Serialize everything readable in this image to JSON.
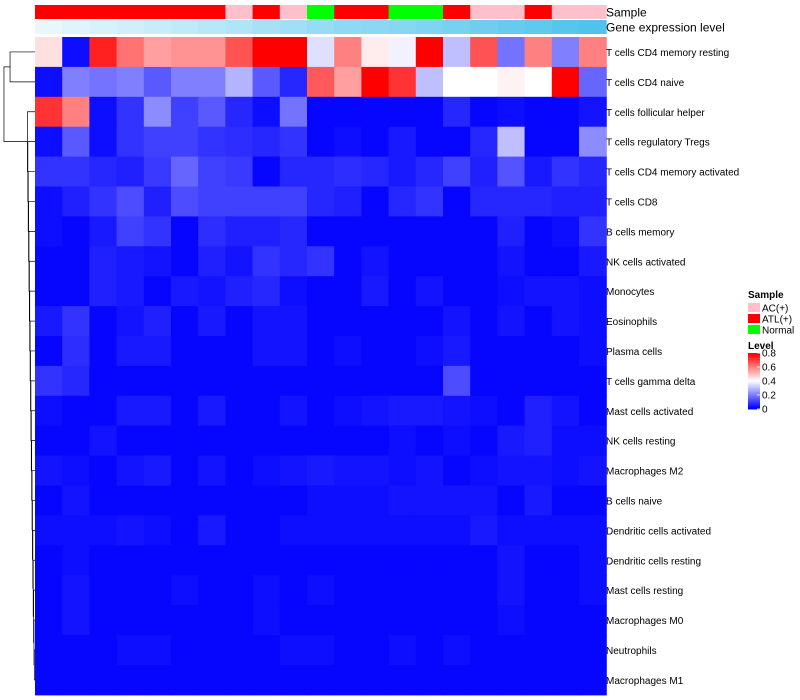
{
  "chart_data": {
    "type": "heatmap",
    "annotation_labels": [
      "Sample",
      "Gene expression level"
    ],
    "columns": [
      {
        "sample": "ATL(+)",
        "expression": 0.05
      },
      {
        "sample": "ATL(+)",
        "expression": 0.1
      },
      {
        "sample": "ATL(+)",
        "expression": 0.15
      },
      {
        "sample": "ATL(+)",
        "expression": 0.2
      },
      {
        "sample": "ATL(+)",
        "expression": 0.25
      },
      {
        "sample": "ATL(+)",
        "expression": 0.3
      },
      {
        "sample": "ATL(+)",
        "expression": 0.35
      },
      {
        "sample": "AC(+)",
        "expression": 0.4
      },
      {
        "sample": "ATL(+)",
        "expression": 0.45
      },
      {
        "sample": "AC(+)",
        "expression": 0.5
      },
      {
        "sample": "Normal",
        "expression": 0.55
      },
      {
        "sample": "ATL(+)",
        "expression": 0.6
      },
      {
        "sample": "ATL(+)",
        "expression": 0.62
      },
      {
        "sample": "Normal",
        "expression": 0.65
      },
      {
        "sample": "Normal",
        "expression": 0.7
      },
      {
        "sample": "ATL(+)",
        "expression": 0.75
      },
      {
        "sample": "AC(+)",
        "expression": 0.8
      },
      {
        "sample": "AC(+)",
        "expression": 0.85
      },
      {
        "sample": "ATL(+)",
        "expression": 0.9
      },
      {
        "sample": "AC(+)",
        "expression": 0.95
      },
      {
        "sample": "AC(+)",
        "expression": 1.0
      }
    ],
    "rows": [
      "T cells CD4 memory resting",
      "T cells CD4 naive",
      "T cells follicular helper",
      "T cells regulatory  Tregs",
      "T cells CD4 memory activated",
      "T cells CD8",
      "B cells memory",
      "NK cells activated",
      "Monocytes",
      "Eosinophils",
      "Plasma cells",
      "T cells gamma delta",
      "Mast cells activated",
      "NK cells resting",
      "Macrophages M2",
      "B cells naive",
      "Dendritic cells activated",
      "Dendritic cells resting",
      "Mast cells resting",
      "Macrophages M0",
      "Neutrophils",
      "Macrophages M1"
    ],
    "values": [
      [
        0.45,
        0.02,
        0.75,
        0.62,
        0.55,
        0.57,
        0.57,
        0.67,
        0.8,
        0.8,
        0.35,
        0.6,
        0.43,
        0.38,
        0.8,
        0.3,
        0.67,
        0.18,
        0.6,
        0.2,
        0.6
      ],
      [
        0.02,
        0.2,
        0.18,
        0.2,
        0.14,
        0.2,
        0.2,
        0.28,
        0.14,
        0.06,
        0.66,
        0.55,
        0.8,
        0.72,
        0.3,
        0.4,
        0.4,
        0.42,
        0.4,
        0.8,
        0.16
      ],
      [
        0.72,
        0.6,
        0.02,
        0.08,
        0.22,
        0.1,
        0.14,
        0.06,
        0.02,
        0.18,
        0.01,
        0.01,
        0.01,
        0.01,
        0.01,
        0.06,
        0.01,
        0.02,
        0.01,
        0.01,
        0.03
      ],
      [
        0.02,
        0.14,
        0.02,
        0.08,
        0.1,
        0.1,
        0.08,
        0.07,
        0.06,
        0.08,
        0.01,
        0.02,
        0.01,
        0.04,
        0.01,
        0.01,
        0.06,
        0.3,
        0.01,
        0.01,
        0.22
      ],
      [
        0.08,
        0.08,
        0.06,
        0.05,
        0.09,
        0.16,
        0.1,
        0.09,
        0.01,
        0.06,
        0.06,
        0.07,
        0.06,
        0.04,
        0.06,
        0.1,
        0.05,
        0.13,
        0.04,
        0.08,
        0.06
      ],
      [
        0.02,
        0.05,
        0.08,
        0.12,
        0.05,
        0.12,
        0.1,
        0.1,
        0.1,
        0.1,
        0.06,
        0.05,
        0.01,
        0.06,
        0.08,
        0.01,
        0.06,
        0.06,
        0.06,
        0.05,
        0.05
      ],
      [
        0.02,
        0.01,
        0.04,
        0.1,
        0.08,
        0.01,
        0.07,
        0.05,
        0.05,
        0.06,
        0.01,
        0.01,
        0.01,
        0.01,
        0.01,
        0.01,
        0.01,
        0.05,
        0.01,
        0.02,
        0.08
      ],
      [
        0.01,
        0.01,
        0.05,
        0.04,
        0.03,
        0.01,
        0.05,
        0.03,
        0.08,
        0.06,
        0.08,
        0.01,
        0.03,
        0.01,
        0.01,
        0.01,
        0.01,
        0.03,
        0.01,
        0.01,
        0.04
      ],
      [
        0.01,
        0.01,
        0.05,
        0.04,
        0.01,
        0.04,
        0.03,
        0.05,
        0.06,
        0.02,
        0.01,
        0.01,
        0.04,
        0.01,
        0.03,
        0.01,
        0.01,
        0.02,
        0.03,
        0.03,
        0.02
      ],
      [
        0.04,
        0.08,
        0.01,
        0.03,
        0.05,
        0.01,
        0.04,
        0.01,
        0.03,
        0.03,
        0.01,
        0.01,
        0.01,
        0.01,
        0.01,
        0.03,
        0.01,
        0.03,
        0.01,
        0.03,
        0.02
      ],
      [
        0.01,
        0.07,
        0.01,
        0.04,
        0.04,
        0.01,
        0.01,
        0.01,
        0.03,
        0.03,
        0.01,
        0.02,
        0.01,
        0.01,
        0.02,
        0.04,
        0.01,
        0.01,
        0.01,
        0.01,
        0.02
      ],
      [
        0.08,
        0.06,
        0.01,
        0.01,
        0.01,
        0.01,
        0.01,
        0.01,
        0.01,
        0.01,
        0.01,
        0.01,
        0.01,
        0.01,
        0.01,
        0.12,
        0.01,
        0.01,
        0.01,
        0.01,
        0.01
      ],
      [
        0.02,
        0.01,
        0.01,
        0.04,
        0.04,
        0.01,
        0.04,
        0.01,
        0.01,
        0.03,
        0.01,
        0.02,
        0.03,
        0.04,
        0.04,
        0.03,
        0.02,
        0.01,
        0.05,
        0.03,
        0.01
      ],
      [
        0.01,
        0.01,
        0.03,
        0.01,
        0.01,
        0.01,
        0.01,
        0.01,
        0.01,
        0.01,
        0.01,
        0.01,
        0.01,
        0.02,
        0.01,
        0.02,
        0.01,
        0.04,
        0.05,
        0.02,
        0.02
      ],
      [
        0.03,
        0.02,
        0.01,
        0.03,
        0.04,
        0.01,
        0.03,
        0.01,
        0.02,
        0.03,
        0.04,
        0.03,
        0.03,
        0.02,
        0.03,
        0.01,
        0.02,
        0.03,
        0.03,
        0.02,
        0.03
      ],
      [
        0.01,
        0.03,
        0.01,
        0.01,
        0.01,
        0.01,
        0.01,
        0.01,
        0.01,
        0.01,
        0.02,
        0.02,
        0.02,
        0.03,
        0.03,
        0.03,
        0.03,
        0.01,
        0.04,
        0.01,
        0.01
      ],
      [
        0.02,
        0.02,
        0.02,
        0.03,
        0.02,
        0.01,
        0.04,
        0.01,
        0.01,
        0.02,
        0.02,
        0.02,
        0.02,
        0.02,
        0.02,
        0.02,
        0.04,
        0.02,
        0.02,
        0.02,
        0.02
      ],
      [
        0.01,
        0.02,
        0.01,
        0.01,
        0.01,
        0.01,
        0.01,
        0.01,
        0.01,
        0.01,
        0.01,
        0.01,
        0.01,
        0.01,
        0.01,
        0.01,
        0.01,
        0.03,
        0.01,
        0.01,
        0.02
      ],
      [
        0.01,
        0.03,
        0.01,
        0.01,
        0.01,
        0.02,
        0.01,
        0.01,
        0.02,
        0.01,
        0.02,
        0.01,
        0.01,
        0.01,
        0.01,
        0.01,
        0.01,
        0.03,
        0.01,
        0.01,
        0.02
      ],
      [
        0.01,
        0.03,
        0.01,
        0.01,
        0.01,
        0.01,
        0.01,
        0.01,
        0.02,
        0.01,
        0.01,
        0.01,
        0.01,
        0.01,
        0.01,
        0.01,
        0.01,
        0.02,
        0.01,
        0.01,
        0.01
      ],
      [
        0.01,
        0.01,
        0.01,
        0.02,
        0.02,
        0.01,
        0.01,
        0.01,
        0.01,
        0.02,
        0.02,
        0.01,
        0.01,
        0.02,
        0.01,
        0.02,
        0.01,
        0.01,
        0.01,
        0.01,
        0.01
      ],
      [
        0.01,
        0.01,
        0.01,
        0.01,
        0.01,
        0.01,
        0.01,
        0.01,
        0.01,
        0.01,
        0.01,
        0.01,
        0.01,
        0.01,
        0.01,
        0.01,
        0.01,
        0.01,
        0.01,
        0.01,
        0.01
      ]
    ],
    "color_scale": {
      "min": 0,
      "max": 0.8,
      "low": "#0000ff",
      "mid": "#ffffff",
      "high": "#ff0000",
      "ticks": [
        "0.8",
        "0.6",
        "0.4",
        "0.2",
        "0"
      ]
    },
    "sample_colors": {
      "AC(+)": "#ffc0cb",
      "ATL(+)": "#ff0000",
      "Normal": "#00ff00"
    },
    "expression_colors": {
      "low": "#f0fafd",
      "high": "#4fc3ec"
    },
    "legend": {
      "sample_title": "Sample",
      "sample_entries": [
        "AC(+)",
        "ATL(+)",
        "Normal"
      ],
      "level_title": "Level",
      "placement": "right"
    },
    "dendrogram": "rows",
    "grid": false
  }
}
